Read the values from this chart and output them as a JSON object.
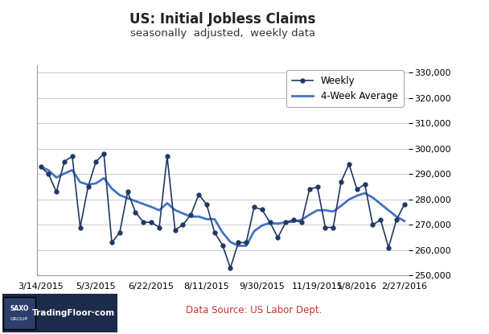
{
  "title": "US: Initial Jobless Claims",
  "subtitle": "seasonally  adjusted,  weekly data",
  "title_fontsize": 12,
  "subtitle_fontsize": 9.5,
  "ylim": [
    250000,
    333000
  ],
  "yticks": [
    250000,
    260000,
    270000,
    280000,
    290000,
    300000,
    310000,
    320000,
    330000
  ],
  "background_color": "#ffffff",
  "plot_bg_color": "#ffffff",
  "grid_color": "#cccccc",
  "data_source": "Data Source: US Labor Dept.",
  "x_labels": [
    "3/14/2015",
    "5/3/2015",
    "6/22/2015",
    "8/11/2015",
    "9/30/2015",
    "11/19/2015",
    "1/8/2016",
    "2/27/2016"
  ],
  "weekly_color": "#1f3864",
  "avg_color": "#4472c4",
  "weekly_values": [
    293000,
    290000,
    283000,
    295000,
    297000,
    269000,
    285000,
    295000,
    298000,
    263000,
    267000,
    283000,
    275000,
    271000,
    271000,
    269000,
    297000,
    268000,
    270000,
    274000,
    282000,
    278000,
    267000,
    262000,
    253000,
    263000,
    263000,
    277000,
    276000,
    271000,
    265000,
    271000,
    272000,
    271000,
    284000,
    285000,
    269000,
    269000,
    287000,
    294000,
    284000,
    286000,
    270000,
    272000,
    261000,
    272000,
    278000
  ],
  "avg_values": [
    293000,
    291500,
    288667,
    290250,
    291600,
    286833,
    285857,
    286375,
    288444,
    284300,
    281727,
    280500,
    279385,
    278214,
    277067,
    275750,
    278563,
    275813,
    274500,
    273250,
    273250,
    272250,
    272250,
    267000,
    263250,
    261750,
    261750,
    267500,
    269750,
    270750,
    270500,
    271000,
    271250,
    272000,
    274000,
    275750,
    275750,
    275250,
    277500,
    280000,
    281500,
    282500,
    280750,
    278250,
    275750,
    273250,
    271500
  ],
  "x_indices": [
    0,
    1,
    2,
    3,
    4,
    5,
    6,
    7,
    8,
    9,
    10,
    11,
    12,
    13,
    14,
    15,
    16,
    17,
    18,
    19,
    20,
    21,
    22,
    23,
    24,
    25,
    26,
    27,
    28,
    29,
    30,
    31,
    32,
    33,
    34,
    35,
    36,
    37,
    38,
    39,
    40,
    41,
    42,
    43,
    44,
    45,
    46
  ],
  "x_tick_positions": [
    0,
    7,
    14,
    21,
    28,
    35,
    40,
    46
  ],
  "legend_weekly": "Weekly",
  "legend_avg": "4-Week Average",
  "logo_bg": "#1c2b4a",
  "logo_text_color": "#ffffff",
  "datasource_color": "#c0392b"
}
